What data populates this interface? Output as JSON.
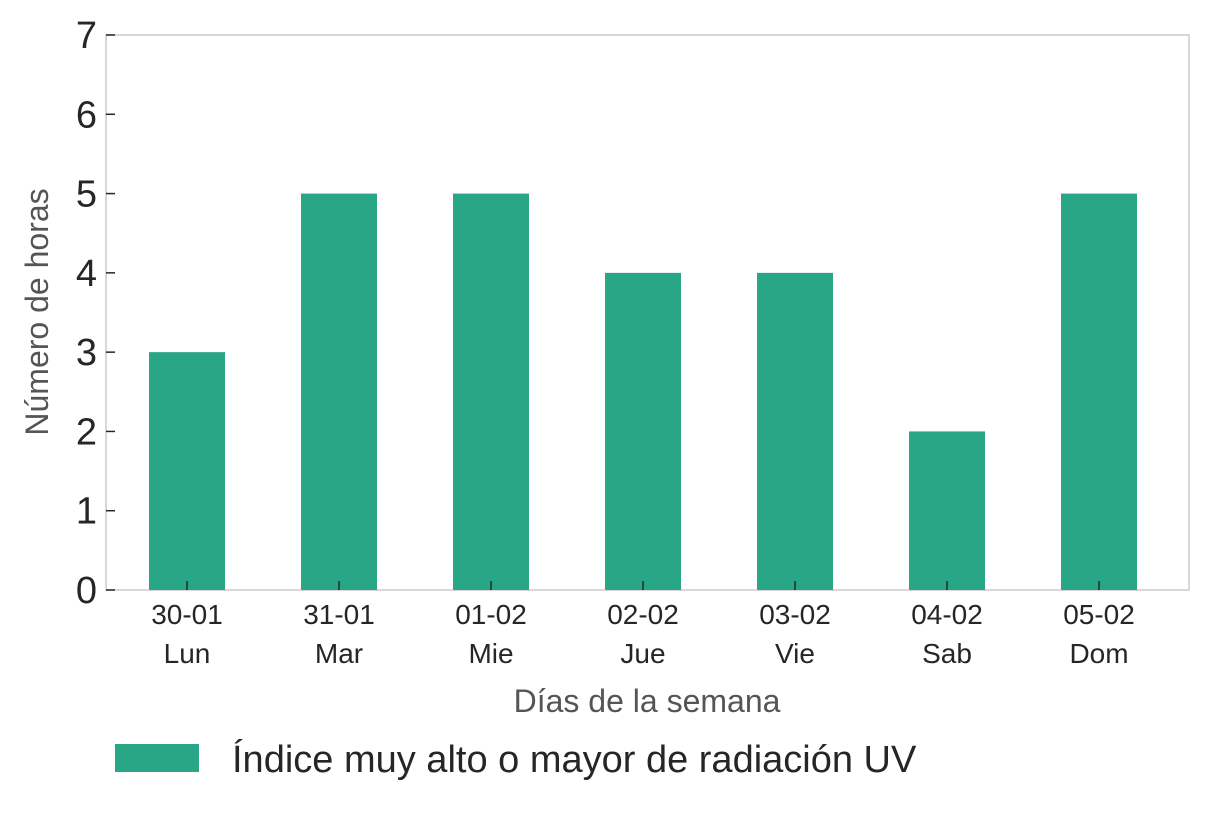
{
  "chart_data": {
    "type": "bar",
    "categories": [
      [
        "30-01",
        "Lun"
      ],
      [
        "31-01",
        "Mar"
      ],
      [
        "01-02",
        "Mie"
      ],
      [
        "02-02",
        "Jue"
      ],
      [
        "03-02",
        "Vie"
      ],
      [
        "04-02",
        "Sab"
      ],
      [
        "05-02",
        "Dom"
      ]
    ],
    "series": [
      {
        "name": "Índice muy alto o mayor de radiación UV",
        "values": [
          3,
          5,
          5,
          4,
          4,
          2,
          5
        ],
        "color": "#29a686"
      }
    ],
    "xlabel": "Días de la semana",
    "ylabel": "Número de horas",
    "ylim": [
      0,
      7
    ],
    "yticks": [
      "0",
      "1",
      "2",
      "3",
      "4",
      "5",
      "6",
      "7"
    ],
    "grid": false,
    "legend_position": "bottom-left"
  }
}
